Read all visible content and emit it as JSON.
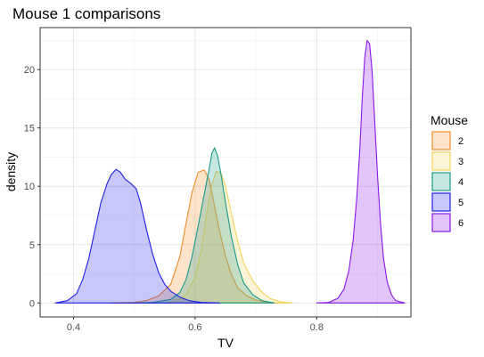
{
  "chart_data": {
    "type": "area",
    "title": "Mouse 1 comparisons",
    "xlabel": "TV",
    "ylabel": "density",
    "xlim": [
      0.345,
      0.955
    ],
    "ylim": [
      -1.2,
      23.6
    ],
    "x_ticks": [
      {
        "value": 0.4,
        "label": "0.4"
      },
      {
        "value": 0.6,
        "label": "0.6"
      },
      {
        "value": 0.8,
        "label": "0.8"
      }
    ],
    "y_ticks": [
      {
        "value": 0,
        "label": "0"
      },
      {
        "value": 5,
        "label": "5"
      },
      {
        "value": 10,
        "label": "10"
      },
      {
        "value": 15,
        "label": "15"
      },
      {
        "value": 20,
        "label": "20"
      }
    ],
    "grid": true,
    "legend": {
      "title": "Mouse",
      "position": "right"
    },
    "series": [
      {
        "name": "2",
        "color": "#F28E2B",
        "fill": "#FAD7B2",
        "points": [
          [
            0.46,
            0
          ],
          [
            0.5,
            0.05
          ],
          [
            0.52,
            0.2
          ],
          [
            0.54,
            0.6
          ],
          [
            0.56,
            1.6
          ],
          [
            0.575,
            4
          ],
          [
            0.585,
            6.8
          ],
          [
            0.595,
            9.5
          ],
          [
            0.605,
            11.2
          ],
          [
            0.615,
            11.4
          ],
          [
            0.623,
            10.6
          ],
          [
            0.63,
            8.8
          ],
          [
            0.64,
            6.2
          ],
          [
            0.65,
            4
          ],
          [
            0.66,
            2.4
          ],
          [
            0.67,
            1.3
          ],
          [
            0.685,
            0.6
          ],
          [
            0.7,
            0.25
          ],
          [
            0.72,
            0.05
          ],
          [
            0.74,
            0
          ]
        ]
      },
      {
        "name": "3",
        "color": "#F4D35E",
        "fill": "#FBEFC2",
        "points": [
          [
            0.55,
            0
          ],
          [
            0.57,
            0.2
          ],
          [
            0.585,
            0.7
          ],
          [
            0.6,
            2.2
          ],
          [
            0.61,
            4.5
          ],
          [
            0.62,
            8
          ],
          [
            0.628,
            10.2
          ],
          [
            0.635,
            11.3
          ],
          [
            0.643,
            11.1
          ],
          [
            0.65,
            10
          ],
          [
            0.66,
            7.6
          ],
          [
            0.67,
            5.3
          ],
          [
            0.68,
            3.4
          ],
          [
            0.695,
            1.9
          ],
          [
            0.71,
            0.9
          ],
          [
            0.725,
            0.35
          ],
          [
            0.74,
            0.1
          ],
          [
            0.76,
            0
          ]
        ]
      },
      {
        "name": "4",
        "color": "#1A9A8A",
        "fill": "#A8D6CF",
        "points": [
          [
            0.5,
            0
          ],
          [
            0.53,
            0.05
          ],
          [
            0.56,
            0.3
          ],
          [
            0.575,
            0.9
          ],
          [
            0.585,
            2
          ],
          [
            0.595,
            4
          ],
          [
            0.605,
            6.6
          ],
          [
            0.615,
            9.3
          ],
          [
            0.622,
            11.2
          ],
          [
            0.628,
            12.9
          ],
          [
            0.632,
            13.3
          ],
          [
            0.637,
            12.6
          ],
          [
            0.643,
            10.9
          ],
          [
            0.65,
            8.6
          ],
          [
            0.66,
            5.6
          ],
          [
            0.67,
            3.3
          ],
          [
            0.68,
            1.7
          ],
          [
            0.695,
            0.7
          ],
          [
            0.71,
            0.2
          ],
          [
            0.73,
            0
          ]
        ]
      },
      {
        "name": "5",
        "color": "#1E1EE6",
        "fill": "#C2C2FF",
        "points": [
          [
            0.37,
            0
          ],
          [
            0.39,
            0.2
          ],
          [
            0.405,
            0.8
          ],
          [
            0.415,
            2
          ],
          [
            0.425,
            3.8
          ],
          [
            0.435,
            6.2
          ],
          [
            0.445,
            8.6
          ],
          [
            0.455,
            10.2
          ],
          [
            0.462,
            11
          ],
          [
            0.47,
            11.45
          ],
          [
            0.477,
            11.2
          ],
          [
            0.485,
            10.6
          ],
          [
            0.495,
            10.2
          ],
          [
            0.503,
            9.8
          ],
          [
            0.51,
            8.6
          ],
          [
            0.52,
            6.3
          ],
          [
            0.53,
            4.2
          ],
          [
            0.54,
            2.6
          ],
          [
            0.55,
            1.6
          ],
          [
            0.56,
            1
          ],
          [
            0.575,
            0.5
          ],
          [
            0.59,
            0.2
          ],
          [
            0.61,
            0.05
          ],
          [
            0.64,
            0
          ]
        ]
      },
      {
        "name": "6",
        "color": "#8A16EA",
        "fill": "#DDB7FA",
        "points": [
          [
            0.8,
            0
          ],
          [
            0.82,
            0.05
          ],
          [
            0.835,
            0.4
          ],
          [
            0.845,
            1.2
          ],
          [
            0.853,
            2.8
          ],
          [
            0.86,
            5.4
          ],
          [
            0.866,
            9
          ],
          [
            0.871,
            13.2
          ],
          [
            0.875,
            17.6
          ],
          [
            0.879,
            21
          ],
          [
            0.883,
            22.5
          ],
          [
            0.887,
            22.2
          ],
          [
            0.891,
            20
          ],
          [
            0.895,
            16
          ],
          [
            0.9,
            11
          ],
          [
            0.905,
            6.8
          ],
          [
            0.91,
            3.8
          ],
          [
            0.916,
            1.8
          ],
          [
            0.923,
            0.7
          ],
          [
            0.93,
            0.2
          ],
          [
            0.945,
            0
          ]
        ]
      }
    ]
  }
}
